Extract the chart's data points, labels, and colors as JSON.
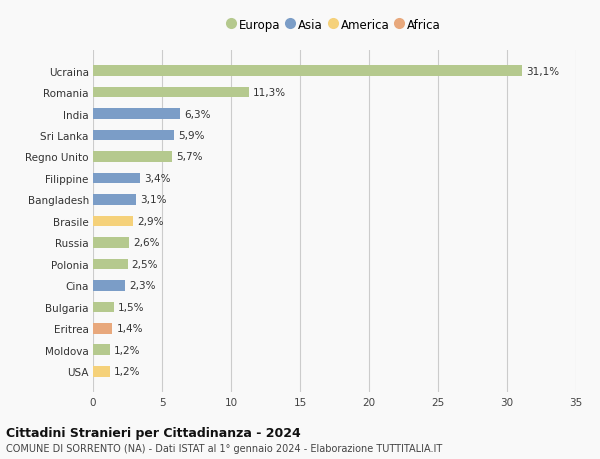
{
  "countries": [
    "Ucraina",
    "Romania",
    "India",
    "Sri Lanka",
    "Regno Unito",
    "Filippine",
    "Bangladesh",
    "Brasile",
    "Russia",
    "Polonia",
    "Cina",
    "Bulgaria",
    "Eritrea",
    "Moldova",
    "USA"
  ],
  "values": [
    31.1,
    11.3,
    6.3,
    5.9,
    5.7,
    3.4,
    3.1,
    2.9,
    2.6,
    2.5,
    2.3,
    1.5,
    1.4,
    1.2,
    1.2
  ],
  "labels": [
    "31,1%",
    "11,3%",
    "6,3%",
    "5,9%",
    "5,7%",
    "3,4%",
    "3,1%",
    "2,9%",
    "2,6%",
    "2,5%",
    "2,3%",
    "1,5%",
    "1,4%",
    "1,2%",
    "1,2%"
  ],
  "continents": [
    "Europa",
    "Europa",
    "Asia",
    "Asia",
    "Europa",
    "Asia",
    "Asia",
    "America",
    "Europa",
    "Europa",
    "Asia",
    "Europa",
    "Africa",
    "Europa",
    "America"
  ],
  "colors": {
    "Europa": "#b5c98e",
    "Asia": "#7b9dc7",
    "America": "#f5d17a",
    "Africa": "#e8a87c"
  },
  "legend_order": [
    "Europa",
    "Asia",
    "America",
    "Africa"
  ],
  "title_main": "Cittadini Stranieri per Cittadinanza - 2024",
  "title_sub": "COMUNE DI SORRENTO (NA) - Dati ISTAT al 1° gennaio 2024 - Elaborazione TUTTITALIA.IT",
  "xlim": [
    0,
    35
  ],
  "xticks": [
    0,
    5,
    10,
    15,
    20,
    25,
    30,
    35
  ],
  "background_color": "#f9f9f9",
  "grid_color": "#cccccc"
}
